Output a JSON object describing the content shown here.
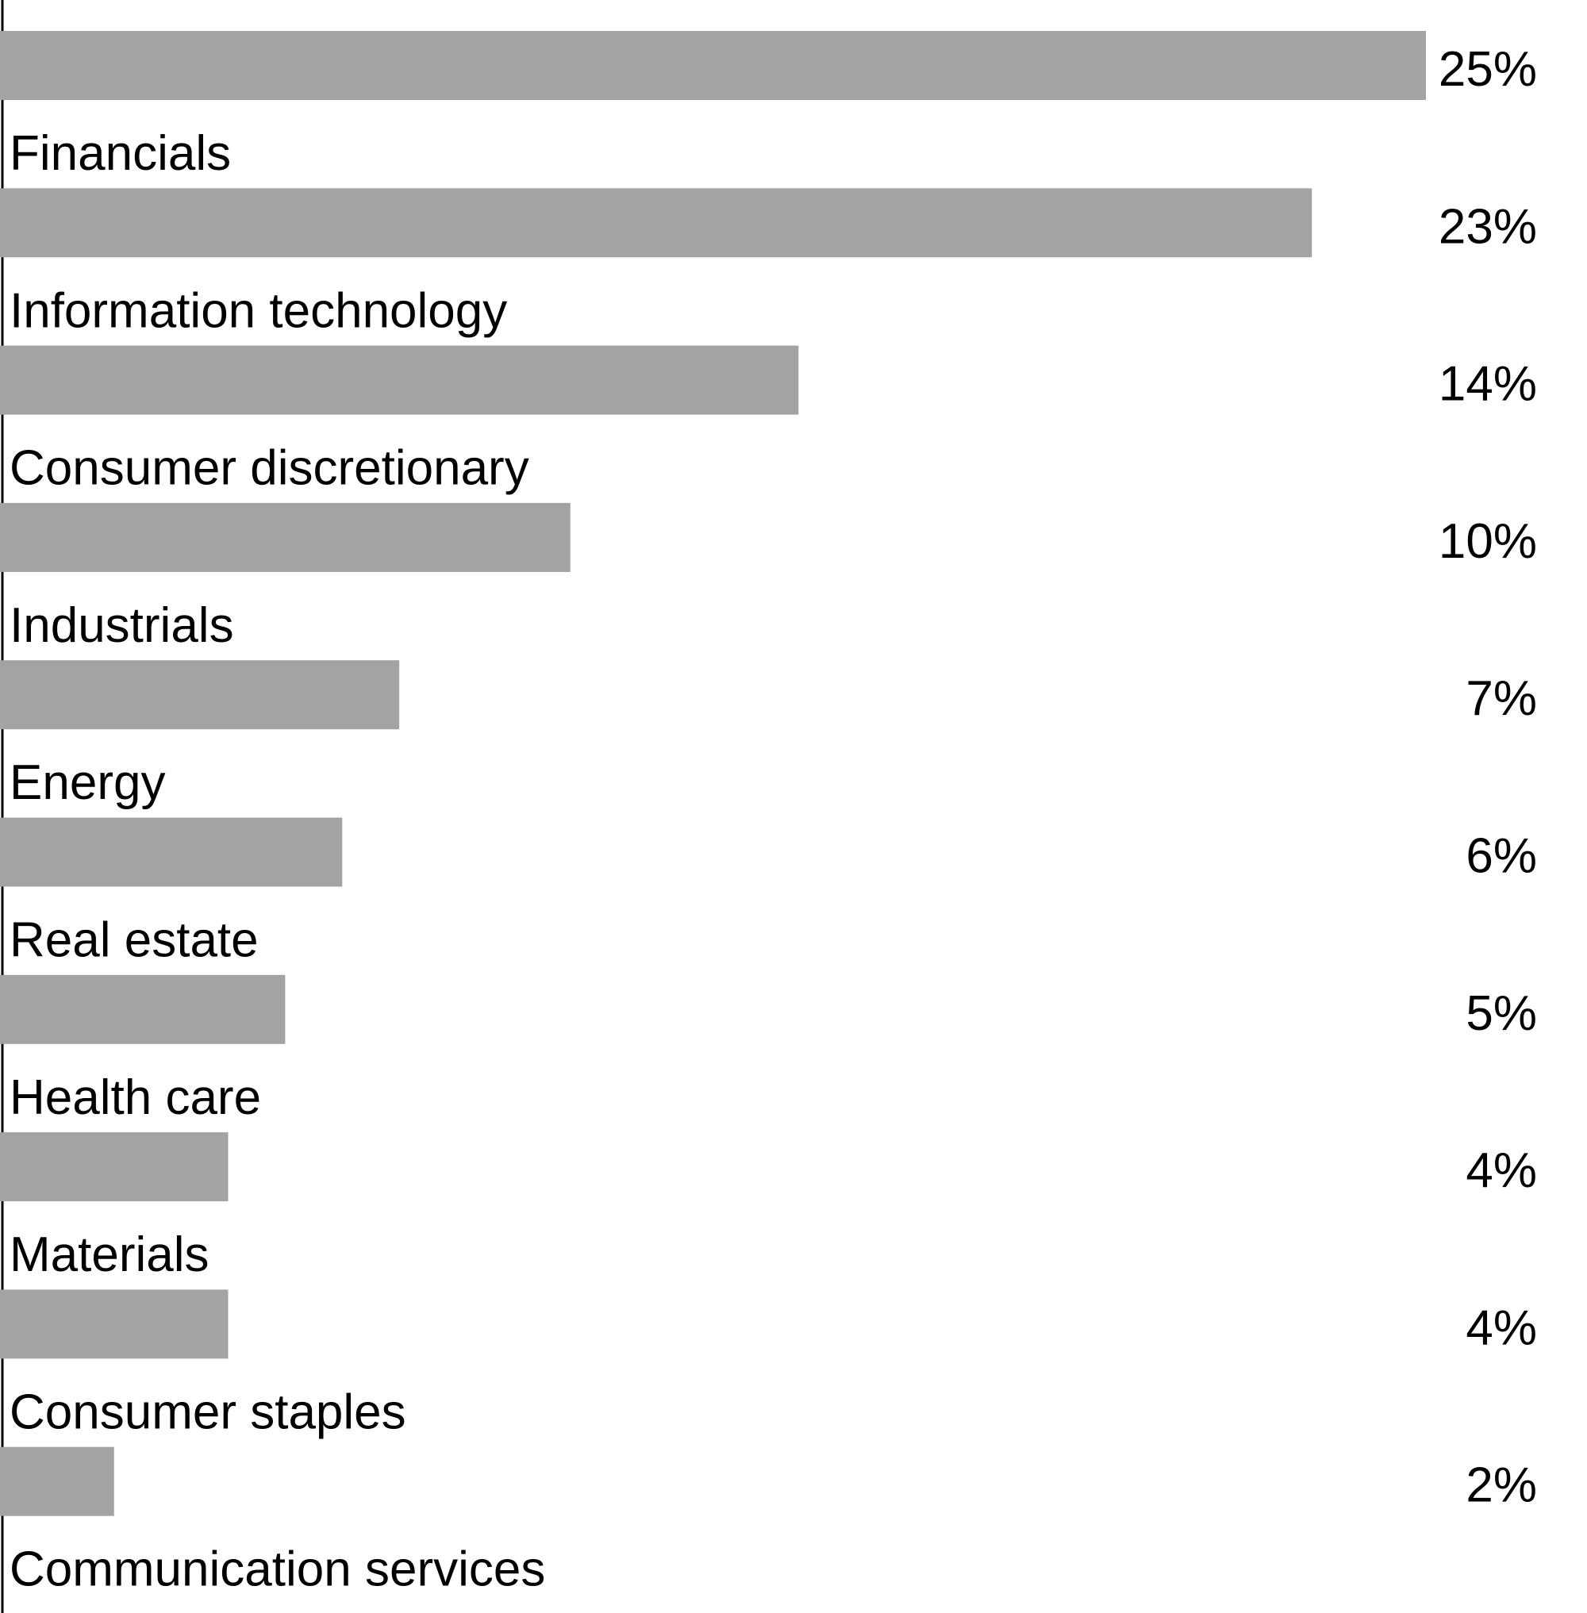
{
  "chart_data": {
    "type": "bar",
    "orientation": "horizontal",
    "categories": [
      "Financials",
      "Information technology",
      "Consumer discretionary",
      "Industrials",
      "Energy",
      "Real estate",
      "Health care",
      "Materials",
      "Consumer staples",
      "Communication services"
    ],
    "values": [
      25,
      23,
      14,
      10,
      7,
      6,
      5,
      4,
      4,
      2
    ],
    "value_labels": [
      "25%",
      "23%",
      "14%",
      "10%",
      "7%",
      "6%",
      "5%",
      "4%",
      "4%",
      "2%"
    ],
    "value_unit": "%",
    "xlim": [
      0,
      25
    ],
    "grid": false,
    "colors": {
      "bar": "#a3a3a3",
      "axis": "#000000",
      "text": "#000000",
      "background": "#ffffff"
    }
  }
}
